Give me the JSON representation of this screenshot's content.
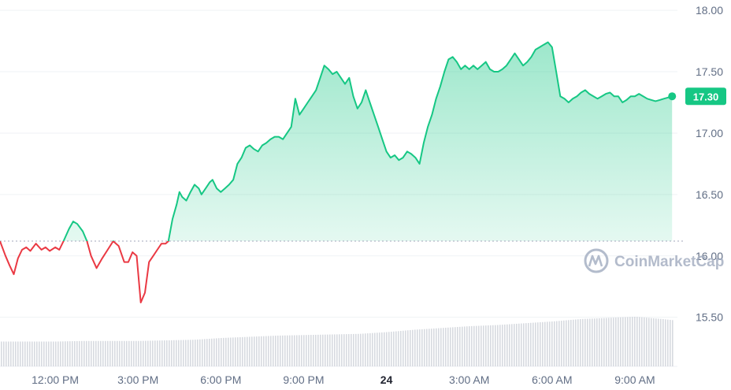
{
  "colors": {
    "up": "#16c784",
    "down": "#ea3943",
    "grid": "#eff2f5",
    "axis_text": "#616e85",
    "volume": "#c9ced6",
    "baseline": "#a1a7bb",
    "watermark": "#a6b0c3"
  },
  "watermark": {
    "text": "CoinMarketCap",
    "icon": "coinmarketcap-logo-icon"
  },
  "price_tag": {
    "label": "17.30"
  },
  "chart_data": {
    "type": "line",
    "title": "",
    "xlabel": "",
    "ylabel": "",
    "ylim": [
      15.1,
      18.02
    ],
    "xlim": [
      10.0,
      34.4
    ],
    "x_unit": "hours since 00:00 on the previous day (24 = midnight on the 24th)",
    "baseline": 16.12,
    "y_ticks": [
      "18.00",
      "17.50",
      "17.00",
      "16.50",
      "16.00",
      "15.50"
    ],
    "y_tick_values": [
      18.0,
      17.5,
      17.0,
      16.5,
      16.0,
      15.5
    ],
    "x_ticks": [
      {
        "label": "12:00 PM",
        "value": 12,
        "bold": false
      },
      {
        "label": "3:00 PM",
        "value": 15,
        "bold": false
      },
      {
        "label": "6:00 PM",
        "value": 18,
        "bold": false
      },
      {
        "label": "9:00 PM",
        "value": 21,
        "bold": false
      },
      {
        "label": "24",
        "value": 24,
        "bold": true
      },
      {
        "label": "3:00 AM",
        "value": 27,
        "bold": false
      },
      {
        "label": "6:00 AM",
        "value": 30,
        "bold": false
      },
      {
        "label": "9:00 AM",
        "value": 33,
        "bold": false
      }
    ],
    "series": [
      {
        "x": [
          10.0,
          10.2,
          10.35,
          10.5,
          10.65,
          10.8,
          10.95,
          11.1,
          11.3,
          11.5,
          11.65,
          11.8,
          12.0,
          12.15,
          12.3,
          12.5,
          12.65,
          12.8,
          13.0,
          13.15,
          13.3,
          13.5,
          13.7,
          13.9,
          14.1,
          14.3,
          14.5,
          14.65,
          14.8,
          14.95,
          15.1,
          15.25,
          15.4,
          15.55,
          15.7,
          15.85,
          16.0,
          16.1,
          16.25,
          16.4,
          16.5,
          16.6,
          16.75,
          16.9,
          17.05,
          17.2,
          17.3,
          17.45,
          17.6,
          17.7,
          17.85,
          18.0,
          18.15,
          18.3,
          18.45,
          18.6,
          18.75,
          18.9,
          19.05,
          19.2,
          19.35,
          19.5,
          19.65,
          19.8,
          19.95,
          20.1,
          20.25,
          20.4,
          20.55,
          20.7,
          20.85,
          21.0,
          21.15,
          21.3,
          21.45,
          21.6,
          21.75,
          21.9,
          22.05,
          22.2,
          22.35,
          22.5,
          22.65,
          22.8,
          22.95,
          23.1,
          23.25,
          23.4,
          23.55,
          23.7,
          23.85,
          24.0,
          24.15,
          24.3,
          24.45,
          24.6,
          24.75,
          24.9,
          25.05,
          25.2,
          25.35,
          25.5,
          25.65,
          25.8,
          25.95,
          26.1,
          26.25,
          26.4,
          26.55,
          26.7,
          26.85,
          27.0,
          27.15,
          27.3,
          27.45,
          27.6,
          27.75,
          27.9,
          28.05,
          28.2,
          28.35,
          28.5,
          28.65,
          28.8,
          28.95,
          29.1,
          29.25,
          29.4,
          29.55,
          29.7,
          29.85,
          30.0,
          30.15,
          30.3,
          30.45,
          30.6,
          30.75,
          30.9,
          31.05,
          31.2,
          31.35,
          31.5,
          31.65,
          31.8,
          31.95,
          32.1,
          32.25,
          32.4,
          32.55,
          32.7,
          32.85,
          33.0,
          33.15,
          33.3,
          33.45,
          33.6,
          33.75,
          33.9,
          34.05,
          34.2,
          34.35
        ],
        "values": [
          16.12,
          16.0,
          15.92,
          15.85,
          15.98,
          16.05,
          16.07,
          16.04,
          16.1,
          16.05,
          16.07,
          16.04,
          16.07,
          16.05,
          16.12,
          16.22,
          16.28,
          16.26,
          16.2,
          16.12,
          16.0,
          15.9,
          15.98,
          16.05,
          16.12,
          16.08,
          15.95,
          15.95,
          16.03,
          16.0,
          15.62,
          15.7,
          15.95,
          16.0,
          16.05,
          16.1,
          16.1,
          16.12,
          16.3,
          16.42,
          16.52,
          16.48,
          16.45,
          16.52,
          16.58,
          16.55,
          16.5,
          16.55,
          16.6,
          16.62,
          16.55,
          16.52,
          16.55,
          16.58,
          16.62,
          16.75,
          16.8,
          16.88,
          16.9,
          16.87,
          16.85,
          16.9,
          16.92,
          16.95,
          16.97,
          16.97,
          16.95,
          17.0,
          17.05,
          17.28,
          17.15,
          17.2,
          17.25,
          17.3,
          17.35,
          17.45,
          17.55,
          17.52,
          17.48,
          17.5,
          17.45,
          17.4,
          17.45,
          17.3,
          17.2,
          17.25,
          17.35,
          17.25,
          17.15,
          17.05,
          16.95,
          16.85,
          16.8,
          16.82,
          16.78,
          16.8,
          16.85,
          16.83,
          16.8,
          16.75,
          16.92,
          17.05,
          17.15,
          17.28,
          17.38,
          17.5,
          17.6,
          17.62,
          17.58,
          17.52,
          17.55,
          17.52,
          17.55,
          17.52,
          17.55,
          17.58,
          17.52,
          17.5,
          17.5,
          17.52,
          17.55,
          17.6,
          17.65,
          17.6,
          17.55,
          17.58,
          17.62,
          17.68,
          17.7,
          17.72,
          17.74,
          17.7,
          17.5,
          17.3,
          17.28,
          17.25,
          17.28,
          17.3,
          17.33,
          17.35,
          17.32,
          17.3,
          17.28,
          17.3,
          17.32,
          17.33,
          17.3,
          17.3,
          17.25,
          17.27,
          17.3,
          17.3,
          17.32,
          17.3,
          17.28,
          17.27,
          17.26,
          17.27,
          17.28,
          17.29,
          17.3
        ]
      }
    ],
    "volume": {
      "x": [
        10.0,
        11.0,
        12.0,
        13.0,
        14.0,
        15.0,
        16.0,
        17.0,
        18.0,
        19.0,
        20.0,
        21.0,
        22.0,
        23.0,
        24.0,
        25.0,
        26.0,
        27.0,
        28.0,
        29.0,
        30.0,
        31.0,
        32.0,
        33.0,
        34.0,
        34.4
      ],
      "values": [
        0.42,
        0.42,
        0.42,
        0.43,
        0.43,
        0.43,
        0.44,
        0.45,
        0.48,
        0.5,
        0.52,
        0.53,
        0.54,
        0.55,
        0.58,
        0.62,
        0.65,
        0.68,
        0.7,
        0.73,
        0.76,
        0.8,
        0.82,
        0.84,
        0.8,
        0.78
      ]
    }
  }
}
